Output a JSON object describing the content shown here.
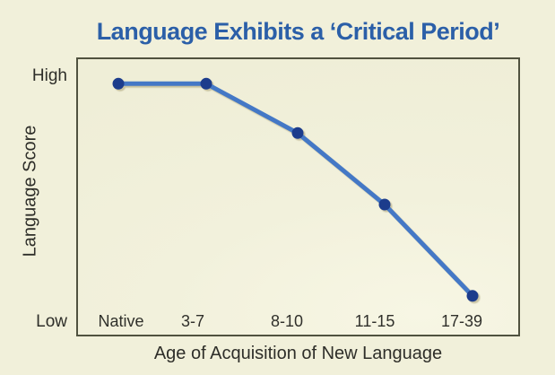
{
  "colors": {
    "background": "#f1f0da",
    "title": "#2b5fa8",
    "line": "#4478c6",
    "marker": "#1c3c8c",
    "plot_border": "#50523f",
    "text": "#2e2e29"
  },
  "chart_data": {
    "type": "line",
    "title": "Language Exhibits a ‘Critical Period’",
    "categories": [
      "Native",
      "3-7",
      "8-10",
      "11-15",
      "17-39"
    ],
    "series": [
      {
        "name": "Language Score",
        "values": [
          97,
          97,
          77,
          48,
          11
        ]
      }
    ],
    "xlabel": "Age of Acquisition of New Language",
    "ylabel": "Language Score",
    "y_axis_labels": {
      "high": "High",
      "low": "Low"
    },
    "ylim": [
      0,
      100
    ],
    "grid": false,
    "legend": false,
    "marker": "circle"
  }
}
